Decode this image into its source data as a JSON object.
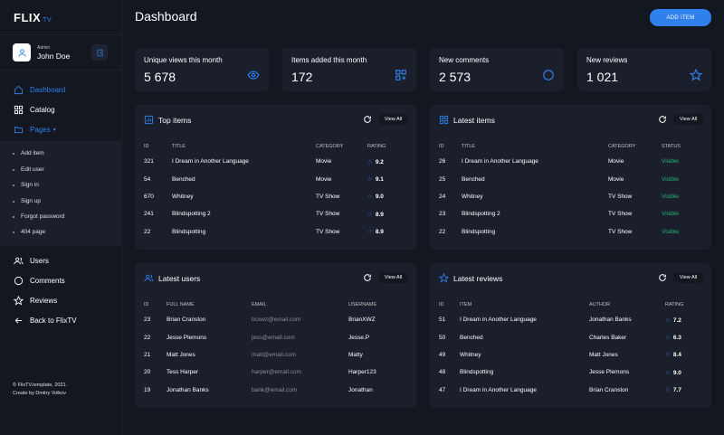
{
  "app": {
    "logo": "FLIX",
    "logo_sub": "TV"
  },
  "user": {
    "role": "Admin",
    "name": "John Doe"
  },
  "nav": {
    "dashboard": "Dashboard",
    "catalog": "Catalog",
    "pages": "Pages",
    "users": "Users",
    "comments": "Comments",
    "reviews": "Reviews",
    "back": "Back to FlixTV"
  },
  "submenu": [
    "Add item",
    "Edit user",
    "Sign in",
    "Sign up",
    "Forgot password",
    "404 page"
  ],
  "copyright": {
    "line1": "© FlixTV.template, 2021.",
    "line2": "Create by Dmitry Volkov"
  },
  "header": {
    "title": "Dashboard",
    "add_button": "ADD ITEM"
  },
  "stats": [
    {
      "label": "Unique views this month",
      "value": "5 678",
      "icon": "eye-icon"
    },
    {
      "label": "Items added this month",
      "value": "172",
      "icon": "grid-plus-icon"
    },
    {
      "label": "New comments",
      "value": "2 573",
      "icon": "chat-icon"
    },
    {
      "label": "New reviews",
      "value": "1 021",
      "icon": "star-icon"
    }
  ],
  "accent": "#2f80ed",
  "view_all": "View All",
  "top_items": {
    "title": "Top items",
    "headers": [
      "ID",
      "TITLE",
      "CATEGORY",
      "RATING"
    ],
    "rows": [
      [
        "321",
        "I Dream in Another Language",
        "Movie",
        "9.2"
      ],
      [
        "54",
        "Benched",
        "Movie",
        "9.1"
      ],
      [
        "670",
        "Whitney",
        "TV Show",
        "9.0"
      ],
      [
        "241",
        "Blindspotting 2",
        "TV Show",
        "8.9"
      ],
      [
        "22",
        "Blindspotting",
        "TV Show",
        "8.9"
      ]
    ]
  },
  "latest_items": {
    "title": "Latest items",
    "headers": [
      "ID",
      "TITLE",
      "CATEGORY",
      "STATUS"
    ],
    "rows": [
      [
        "26",
        "I Dream in Another Language",
        "Movie",
        "Visible"
      ],
      [
        "25",
        "Benched",
        "Movie",
        "Visible"
      ],
      [
        "24",
        "Whitney",
        "TV Show",
        "Visible"
      ],
      [
        "23",
        "Blindspotting 2",
        "TV Show",
        "Visible"
      ],
      [
        "22",
        "Blindspotting",
        "TV Show",
        "Visible"
      ]
    ]
  },
  "latest_users": {
    "title": "Latest users",
    "headers": [
      "ID",
      "FULL NAME",
      "EMAIL",
      "USERNAME"
    ],
    "rows": [
      [
        "23",
        "Brian Cranston",
        "bcxwz@email.com",
        "BrianXWZ"
      ],
      [
        "22",
        "Jesse Plemons",
        "jess@email.com",
        "Jesse.P"
      ],
      [
        "21",
        "Matt Jones",
        "matt@email.com",
        "Matty"
      ],
      [
        "20",
        "Tess Harper",
        "harper@email.com",
        "Harper123"
      ],
      [
        "19",
        "Jonathan Banks",
        "bank@email.com",
        "Jonathan"
      ]
    ]
  },
  "latest_reviews": {
    "title": "Latest reviews",
    "headers": [
      "ID",
      "ITEM",
      "AUTHOR",
      "RATING"
    ],
    "rows": [
      [
        "51",
        "I Dream in Another Language",
        "Jonathan Banks",
        "7.2"
      ],
      [
        "50",
        "Benched",
        "Charles Baker",
        "6.3"
      ],
      [
        "49",
        "Whitney",
        "Matt Jones",
        "8.4"
      ],
      [
        "48",
        "Blindspotting",
        "Jesse Plemons",
        "9.0"
      ],
      [
        "47",
        "I Dream in Another Language",
        "Brian Cranston",
        "7.7"
      ]
    ]
  }
}
